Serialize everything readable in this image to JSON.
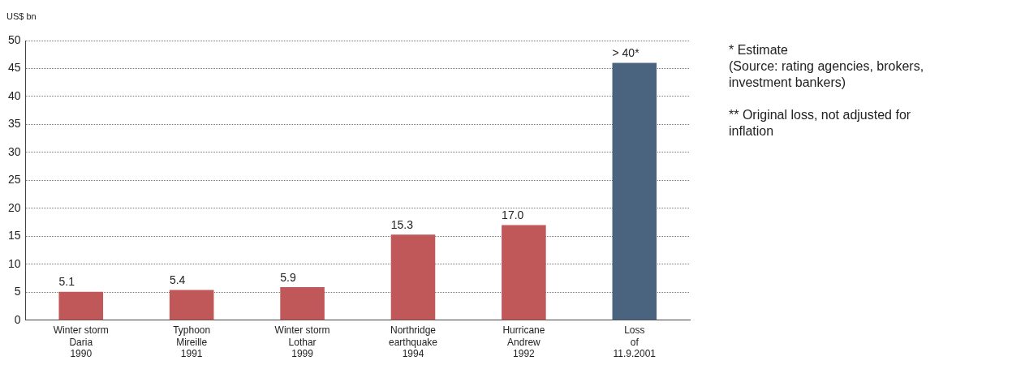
{
  "chart_data": {
    "type": "bar",
    "ylabel": "US$ bn",
    "categories": [
      "Winter storm\nDaria\n1990",
      "Typhoon\nMireille\n1991",
      "Winter storm\nLothar\n1999",
      "Northridge\nearthquake\n1994",
      "Hurricane\nAndrew\n1992",
      "Loss\nof\n11.9.2001"
    ],
    "values": [
      5.1,
      5.4,
      5.9,
      15.3,
      17.0,
      46
    ],
    "value_labels": [
      "5.1",
      "5.4",
      "5.9",
      "15.3",
      "17.0",
      "> 40*"
    ],
    "colors": [
      "#c0585a",
      "#c0585a",
      "#c0585a",
      "#c0585a",
      "#c0585a",
      "#4a6480"
    ],
    "ylim": [
      0,
      50
    ],
    "yticks": [
      0,
      5,
      10,
      15,
      20,
      25,
      30,
      35,
      40,
      45,
      50
    ],
    "grid": "y",
    "legend": false,
    "annotations": [
      "* Estimate\n(Source: rating agencies, brokers,\ninvestment bankers)",
      "** Original loss, not adjusted for\ninflation"
    ]
  }
}
